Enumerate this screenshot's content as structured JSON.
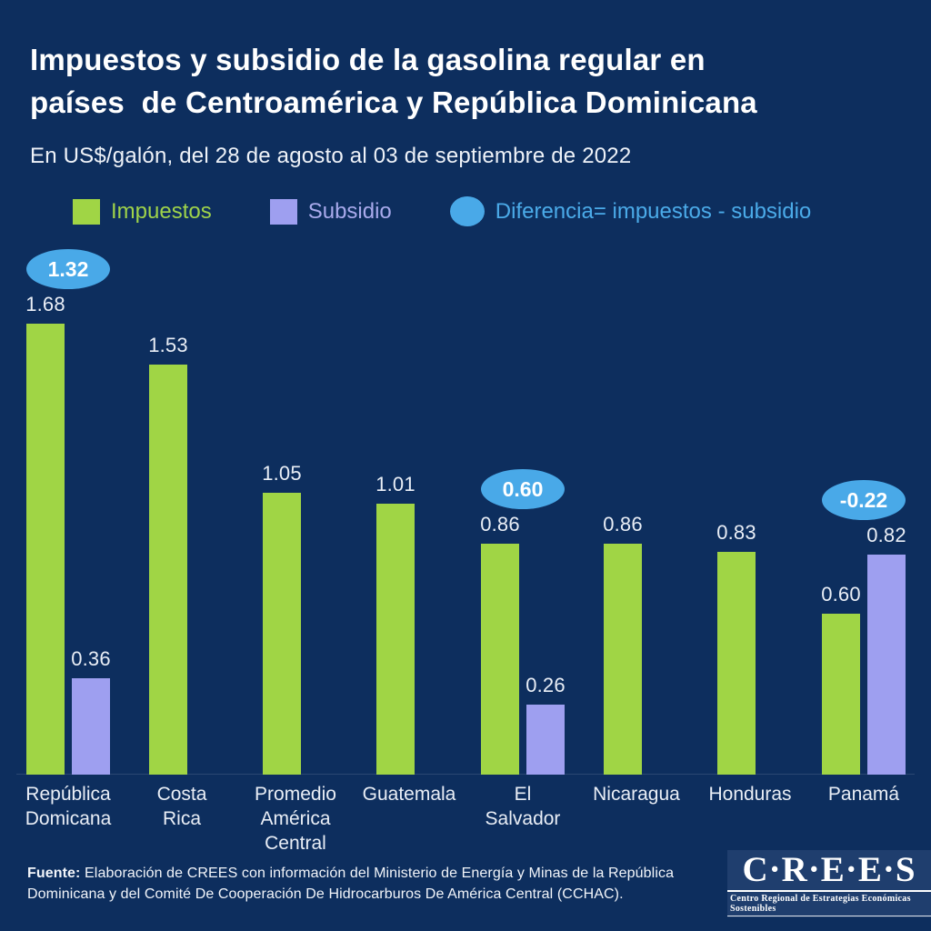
{
  "page": {
    "background": "#0d2e5e",
    "panel_background": "#1f3e6e"
  },
  "header": {
    "title_lines": [
      "Impuestos y subsidio de la gasolina regular en",
      "países  de Centroamérica y República Dominicana"
    ],
    "subtitle": "En US$/galón, del 28 de agosto al 03 de septiembre de 2022"
  },
  "legend": {
    "items": [
      {
        "label": "Impuestos",
        "color": "#a0d545",
        "text_color": "#9fd34a",
        "shape": "square"
      },
      {
        "label": "Subsidio",
        "color": "#9e9ff0",
        "text_color": "#a9aaec",
        "shape": "square"
      },
      {
        "label": "Diferencia= impuestos - subsidio",
        "color": "#49a9e8",
        "text_color": "#4babe9",
        "shape": "ellipse"
      }
    ]
  },
  "chart_data": {
    "type": "bar",
    "title": "Impuestos y subsidio de la gasolina regular en países de Centroamérica y República Dominicana",
    "subtitle": "En US$/galón, del 28 de agosto al 03 de septiembre de 2022",
    "unit": "US$/galón",
    "categories": [
      "República\nDomicana",
      "Costa\nRica",
      "Promedio\nAmérica\nCentral",
      "Guatemala",
      "El\nSalvador",
      "Nicaragua",
      "Honduras",
      "Panamá"
    ],
    "series": [
      {
        "name": "Impuestos",
        "color": "#a0d545",
        "values": [
          1.68,
          1.53,
          1.05,
          1.01,
          0.86,
          0.86,
          0.83,
          0.6
        ]
      },
      {
        "name": "Subsidio",
        "color": "#9e9ff0",
        "values": [
          0.36,
          null,
          null,
          null,
          0.26,
          null,
          null,
          0.82
        ]
      }
    ],
    "difference_badges": [
      {
        "category_index": 0,
        "text": "1.32"
      },
      {
        "category_index": 4,
        "text": "0.60"
      },
      {
        "category_index": 7,
        "text": "-0.22"
      }
    ],
    "badge_color": "#49a9e8",
    "ylim": [
      0,
      1.8
    ],
    "grid": false,
    "legend_position": "top"
  },
  "footer": {
    "source_bold": "Fuente:",
    "source_text": " Elaboración de CREES con información del Ministerio de  Energía y Minas de la República Dominicana y del Comité De Cooperación De Hidrocarburos De América Central (CCHAC).",
    "logo": {
      "name": "C·R·E·E·S",
      "tagline": "Centro Regional de Estrategias Económicas Sostenibles"
    }
  }
}
